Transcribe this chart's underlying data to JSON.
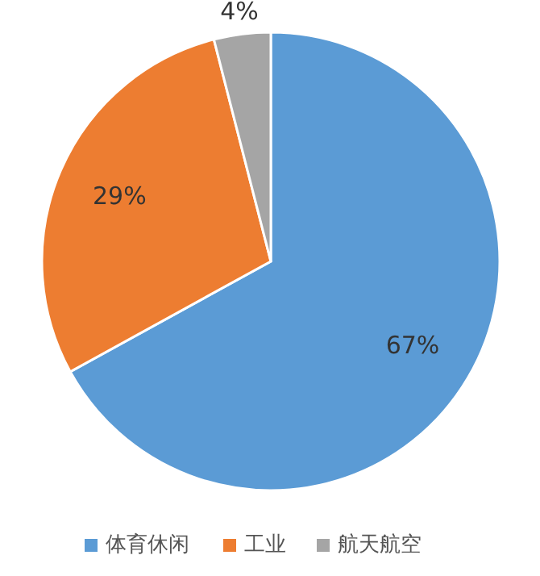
{
  "chart_data": {
    "type": "pie",
    "categories": [
      "体育休闲",
      "工业",
      "航天航空"
    ],
    "values": [
      67,
      29,
      4
    ],
    "value_labels": [
      "67%",
      "29%",
      "4%"
    ],
    "colors": [
      "#5b9bd5",
      "#ed7d31",
      "#a5a5a5"
    ],
    "legend": "bottom"
  }
}
